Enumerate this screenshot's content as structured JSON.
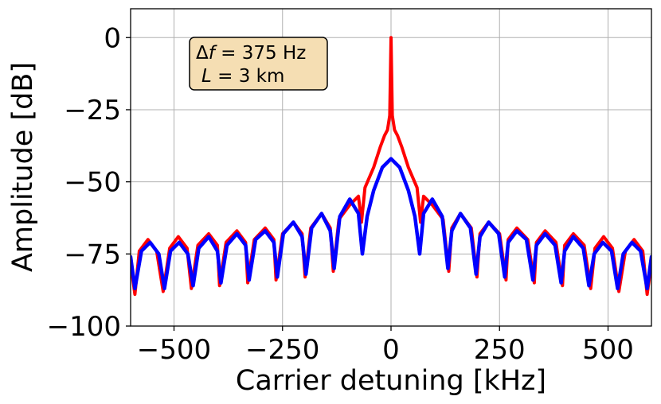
{
  "chart_data": {
    "type": "line",
    "title": "",
    "xlabel": "Carrier detuning [kHz]",
    "ylabel": "Amplitude [dB]",
    "xlim": [
      -600,
      600
    ],
    "ylim": [
      -100,
      10
    ],
    "x_ticks": [
      -500,
      -250,
      0,
      250,
      500
    ],
    "x_tick_labels": [
      "−500",
      "−250",
      "0",
      "250",
      "500"
    ],
    "y_ticks": [
      0,
      -25,
      -50,
      -75,
      -100
    ],
    "y_tick_labels": [
      "0",
      "−25",
      "−50",
      "−75",
      "−100"
    ],
    "grid": true,
    "annotation": {
      "line1": "Δf = 375 Hz",
      "line2": "L = 3 km",
      "background": "#f5deb3"
    },
    "series": [
      {
        "color": "#ff0000",
        "description_points": [
          [
            -600,
            -78
          ],
          [
            -590,
            -89
          ],
          [
            -580,
            -74
          ],
          [
            -560,
            -70
          ],
          [
            -540,
            -74
          ],
          [
            -525,
            -88
          ],
          [
            -510,
            -73
          ],
          [
            -490,
            -69
          ],
          [
            -470,
            -73
          ],
          [
            -460,
            -87
          ],
          [
            -445,
            -72
          ],
          [
            -420,
            -68
          ],
          [
            -400,
            -72
          ],
          [
            -395,
            -86
          ],
          [
            -380,
            -71
          ],
          [
            -355,
            -67
          ],
          [
            -335,
            -71
          ],
          [
            -330,
            -85
          ],
          [
            -315,
            -70
          ],
          [
            -290,
            -66
          ],
          [
            -270,
            -70
          ],
          [
            -265,
            -84
          ],
          [
            -250,
            -68
          ],
          [
            -225,
            -64
          ],
          [
            -205,
            -68
          ],
          [
            -198,
            -83
          ],
          [
            -185,
            -66
          ],
          [
            -160,
            -61
          ],
          [
            -140,
            -66
          ],
          [
            -133,
            -81
          ],
          [
            -120,
            -63
          ],
          [
            -95,
            -58
          ],
          [
            -75,
            -55
          ],
          [
            -68,
            -64
          ],
          [
            -60,
            -52
          ],
          [
            -40,
            -45
          ],
          [
            -25,
            -38
          ],
          [
            -15,
            -34
          ],
          [
            -8,
            -32
          ],
          [
            -3,
            -27
          ],
          [
            0,
            0
          ],
          [
            3,
            -27
          ],
          [
            8,
            -32
          ],
          [
            15,
            -34
          ],
          [
            25,
            -38
          ],
          [
            40,
            -45
          ],
          [
            60,
            -52
          ],
          [
            68,
            -64
          ],
          [
            75,
            -55
          ],
          [
            95,
            -58
          ],
          [
            120,
            -63
          ],
          [
            133,
            -81
          ],
          [
            140,
            -66
          ],
          [
            160,
            -61
          ],
          [
            185,
            -66
          ],
          [
            198,
            -83
          ],
          [
            205,
            -68
          ],
          [
            225,
            -64
          ],
          [
            250,
            -68
          ],
          [
            265,
            -84
          ],
          [
            270,
            -70
          ],
          [
            290,
            -66
          ],
          [
            315,
            -70
          ],
          [
            330,
            -85
          ],
          [
            335,
            -71
          ],
          [
            355,
            -67
          ],
          [
            380,
            -71
          ],
          [
            395,
            -86
          ],
          [
            400,
            -72
          ],
          [
            420,
            -68
          ],
          [
            445,
            -72
          ],
          [
            460,
            -87
          ],
          [
            470,
            -73
          ],
          [
            490,
            -69
          ],
          [
            510,
            -73
          ],
          [
            525,
            -88
          ],
          [
            540,
            -74
          ],
          [
            560,
            -70
          ],
          [
            580,
            -74
          ],
          [
            590,
            -89
          ],
          [
            600,
            -78
          ]
        ]
      },
      {
        "color": "#0000ff",
        "description_points": [
          [
            -600,
            -76
          ],
          [
            -590,
            -87
          ],
          [
            -575,
            -74
          ],
          [
            -555,
            -71
          ],
          [
            -535,
            -75
          ],
          [
            -522,
            -87
          ],
          [
            -508,
            -74
          ],
          [
            -488,
            -71
          ],
          [
            -468,
            -75
          ],
          [
            -456,
            -86
          ],
          [
            -443,
            -73
          ],
          [
            -420,
            -69
          ],
          [
            -400,
            -74
          ],
          [
            -392,
            -85
          ],
          [
            -378,
            -72
          ],
          [
            -355,
            -68
          ],
          [
            -335,
            -72
          ],
          [
            -327,
            -84
          ],
          [
            -312,
            -70
          ],
          [
            -290,
            -67
          ],
          [
            -270,
            -71
          ],
          [
            -262,
            -83
          ],
          [
            -248,
            -68
          ],
          [
            -225,
            -64
          ],
          [
            -205,
            -69
          ],
          [
            -196,
            -82
          ],
          [
            -183,
            -66
          ],
          [
            -160,
            -61
          ],
          [
            -140,
            -67
          ],
          [
            -131,
            -80
          ],
          [
            -118,
            -62
          ],
          [
            -95,
            -56
          ],
          [
            -75,
            -61
          ],
          [
            -66,
            -75
          ],
          [
            -55,
            -62
          ],
          [
            -40,
            -53
          ],
          [
            -20,
            -45
          ],
          [
            0,
            -42
          ],
          [
            20,
            -45
          ],
          [
            40,
            -53
          ],
          [
            55,
            -62
          ],
          [
            66,
            -75
          ],
          [
            75,
            -61
          ],
          [
            95,
            -56
          ],
          [
            118,
            -62
          ],
          [
            131,
            -80
          ],
          [
            140,
            -67
          ],
          [
            160,
            -61
          ],
          [
            183,
            -66
          ],
          [
            196,
            -82
          ],
          [
            205,
            -69
          ],
          [
            225,
            -64
          ],
          [
            248,
            -68
          ],
          [
            262,
            -83
          ],
          [
            270,
            -71
          ],
          [
            290,
            -67
          ],
          [
            312,
            -70
          ],
          [
            327,
            -84
          ],
          [
            335,
            -72
          ],
          [
            355,
            -68
          ],
          [
            378,
            -72
          ],
          [
            392,
            -85
          ],
          [
            400,
            -74
          ],
          [
            420,
            -69
          ],
          [
            443,
            -73
          ],
          [
            456,
            -86
          ],
          [
            468,
            -75
          ],
          [
            488,
            -71
          ],
          [
            508,
            -74
          ],
          [
            522,
            -87
          ],
          [
            535,
            -75
          ],
          [
            555,
            -71
          ],
          [
            575,
            -74
          ],
          [
            590,
            -87
          ],
          [
            600,
            -76
          ]
        ]
      }
    ]
  }
}
